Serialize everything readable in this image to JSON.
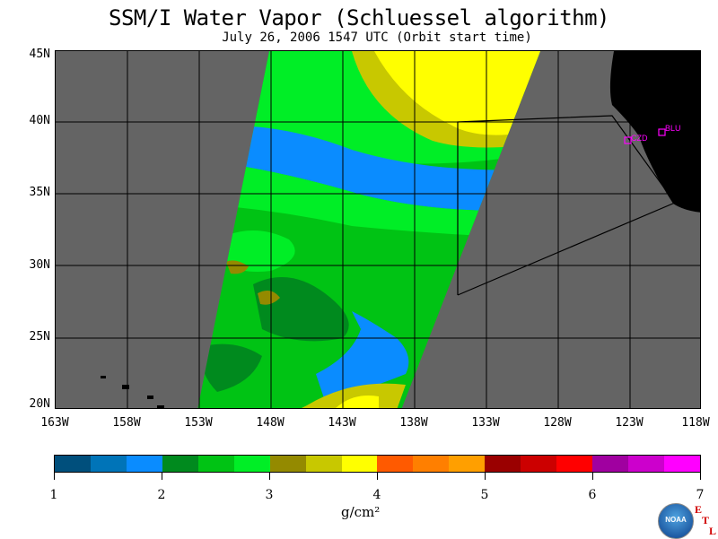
{
  "title": "SSM/I Water Vapor (Schluessel algorithm)",
  "subtitle": "July 26, 2006  1547 UTC  (Orbit start time)",
  "lat_labels": [
    "45N",
    "40N",
    "35N",
    "30N",
    "25N",
    "20N"
  ],
  "lon_labels": [
    "163W",
    "158W",
    "153W",
    "148W",
    "143W",
    "138W",
    "133W",
    "128W",
    "123W",
    "118W"
  ],
  "colorbar": {
    "colors": [
      "#004f7c",
      "#0074b8",
      "#0a8cff",
      "#008a1e",
      "#00c314",
      "#00ee26",
      "#948a00",
      "#c8c800",
      "#ffff00",
      "#ff5a00",
      "#ff7f00",
      "#ff9f00",
      "#9a0000",
      "#cc0000",
      "#ff0000",
      "#a000a0",
      "#cc00cc",
      "#ff00ff"
    ],
    "tick_labels": [
      "1",
      "2",
      "3",
      "4",
      "5",
      "6",
      "7"
    ]
  },
  "unit_label": "g/cm²",
  "stations": [
    "CZD",
    "BLU"
  ],
  "logo_text": "NOAA",
  "etl_letters": [
    "E",
    "T",
    "L"
  ],
  "colors": {
    "ocean": "#646464",
    "land": "#000000",
    "station": "#ff00ff"
  }
}
